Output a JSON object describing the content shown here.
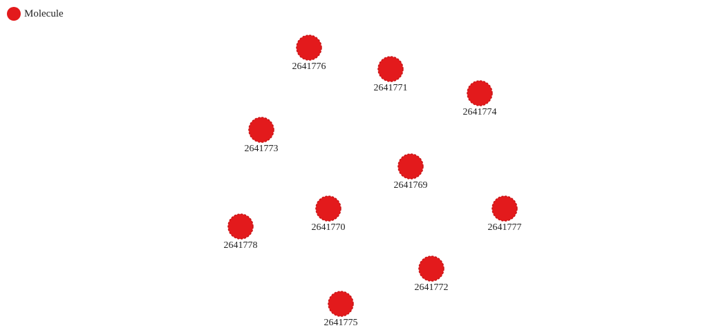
{
  "legend": {
    "label": "Molecule",
    "color": "#e31a1c"
  },
  "node_color": "#e31a1c",
  "node_border_color": "#c81416",
  "nodes": [
    {
      "id": "2641776"
    },
    {
      "id": "2641771"
    },
    {
      "id": "2641774"
    },
    {
      "id": "2641773"
    },
    {
      "id": "2641769"
    },
    {
      "id": "2641770"
    },
    {
      "id": "2641777"
    },
    {
      "id": "2641778"
    },
    {
      "id": "2641772"
    },
    {
      "id": "2641775"
    }
  ]
}
